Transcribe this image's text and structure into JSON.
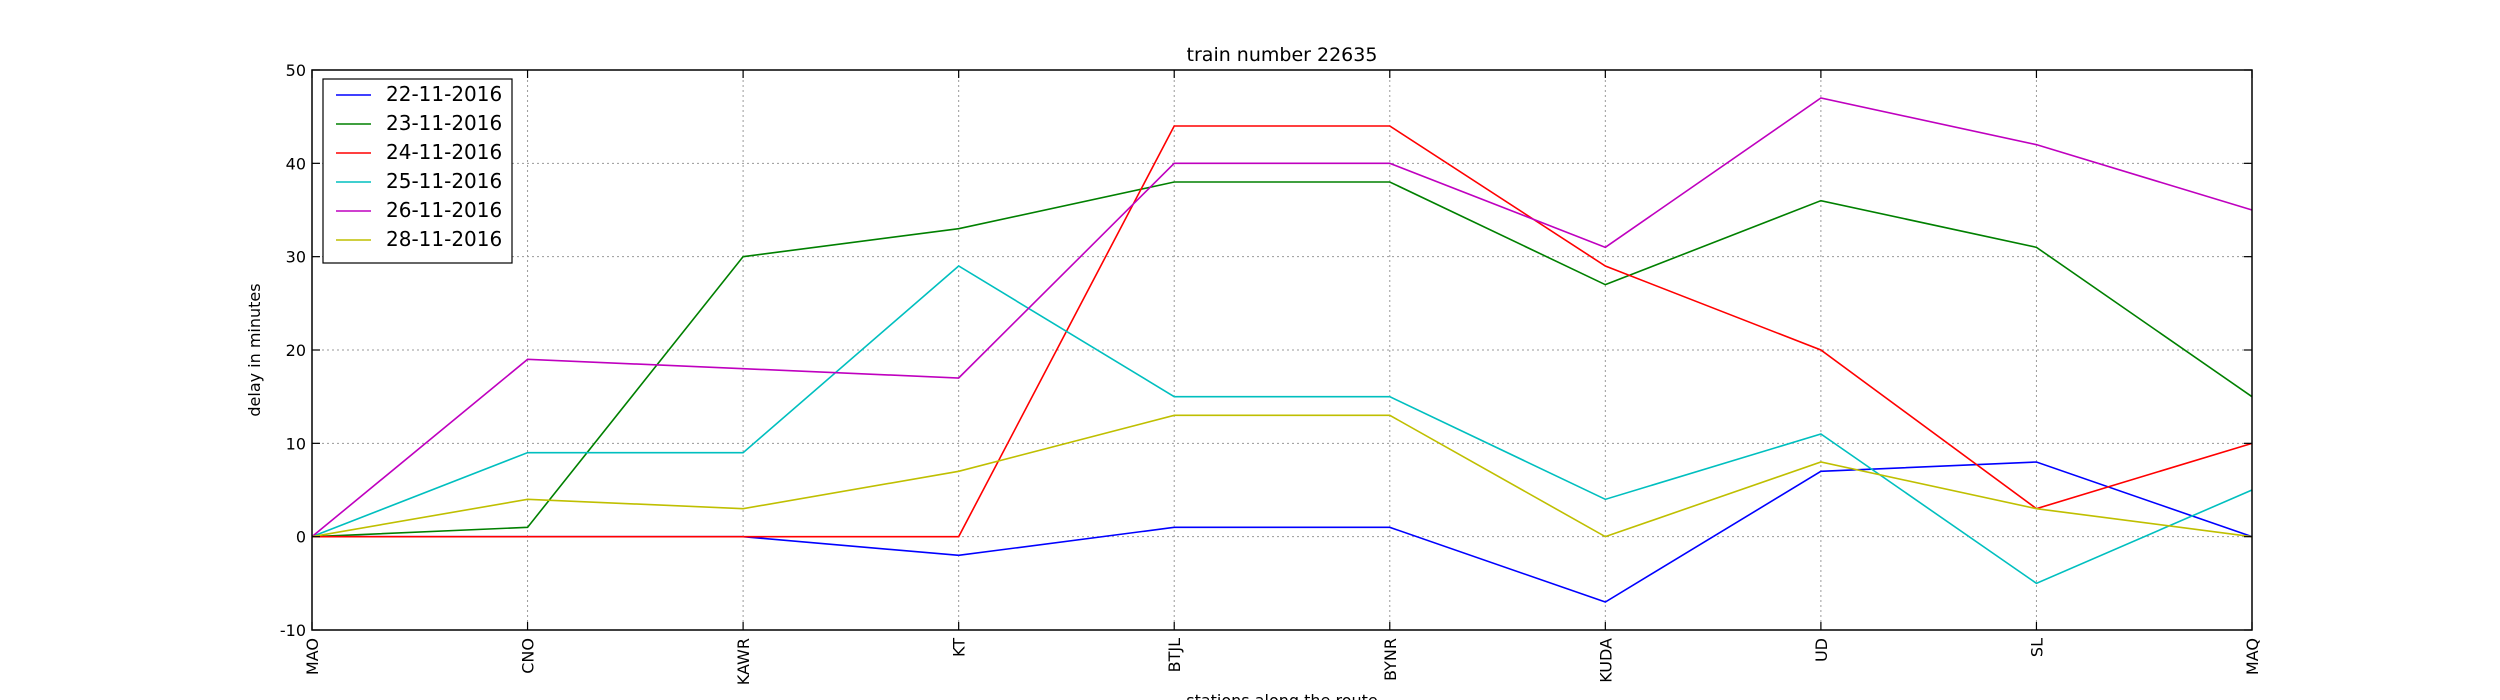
{
  "chart_data": {
    "type": "line",
    "title": "train number 22635",
    "xlabel": "stations along the route",
    "ylabel": "delay in minutes",
    "categories": [
      "MAO",
      "CNO",
      "KAWR",
      "KT",
      "BTJL",
      "BYNR",
      "KUDA",
      "UD",
      "SL",
      "MAQ"
    ],
    "ylim": [
      -10,
      50
    ],
    "yticks": [
      -10,
      0,
      10,
      20,
      30,
      40,
      50
    ],
    "grid": true,
    "legend_position": "top-left",
    "series": [
      {
        "name": "22-11-2016",
        "color": "#0000ff",
        "values": [
          0,
          0,
          0,
          -2,
          1,
          1,
          -7,
          7,
          8,
          0
        ]
      },
      {
        "name": "23-11-2016",
        "color": "#008000",
        "values": [
          0,
          1,
          30,
          33,
          38,
          38,
          27,
          36,
          31,
          15
        ]
      },
      {
        "name": "24-11-2016",
        "color": "#ff0000",
        "values": [
          0,
          0,
          0,
          0,
          44,
          44,
          29,
          20,
          3,
          10
        ]
      },
      {
        "name": "25-11-2016",
        "color": "#00bfbf",
        "values": [
          0,
          9,
          9,
          29,
          15,
          15,
          4,
          11,
          -5,
          5
        ]
      },
      {
        "name": "26-11-2016",
        "color": "#bf00bf",
        "values": [
          0,
          19,
          18,
          17,
          40,
          40,
          31,
          47,
          42,
          35
        ]
      },
      {
        "name": "28-11-2016",
        "color": "#bfbf00",
        "values": [
          0,
          4,
          3,
          7,
          13,
          13,
          0,
          8,
          3,
          0
        ]
      }
    ]
  }
}
